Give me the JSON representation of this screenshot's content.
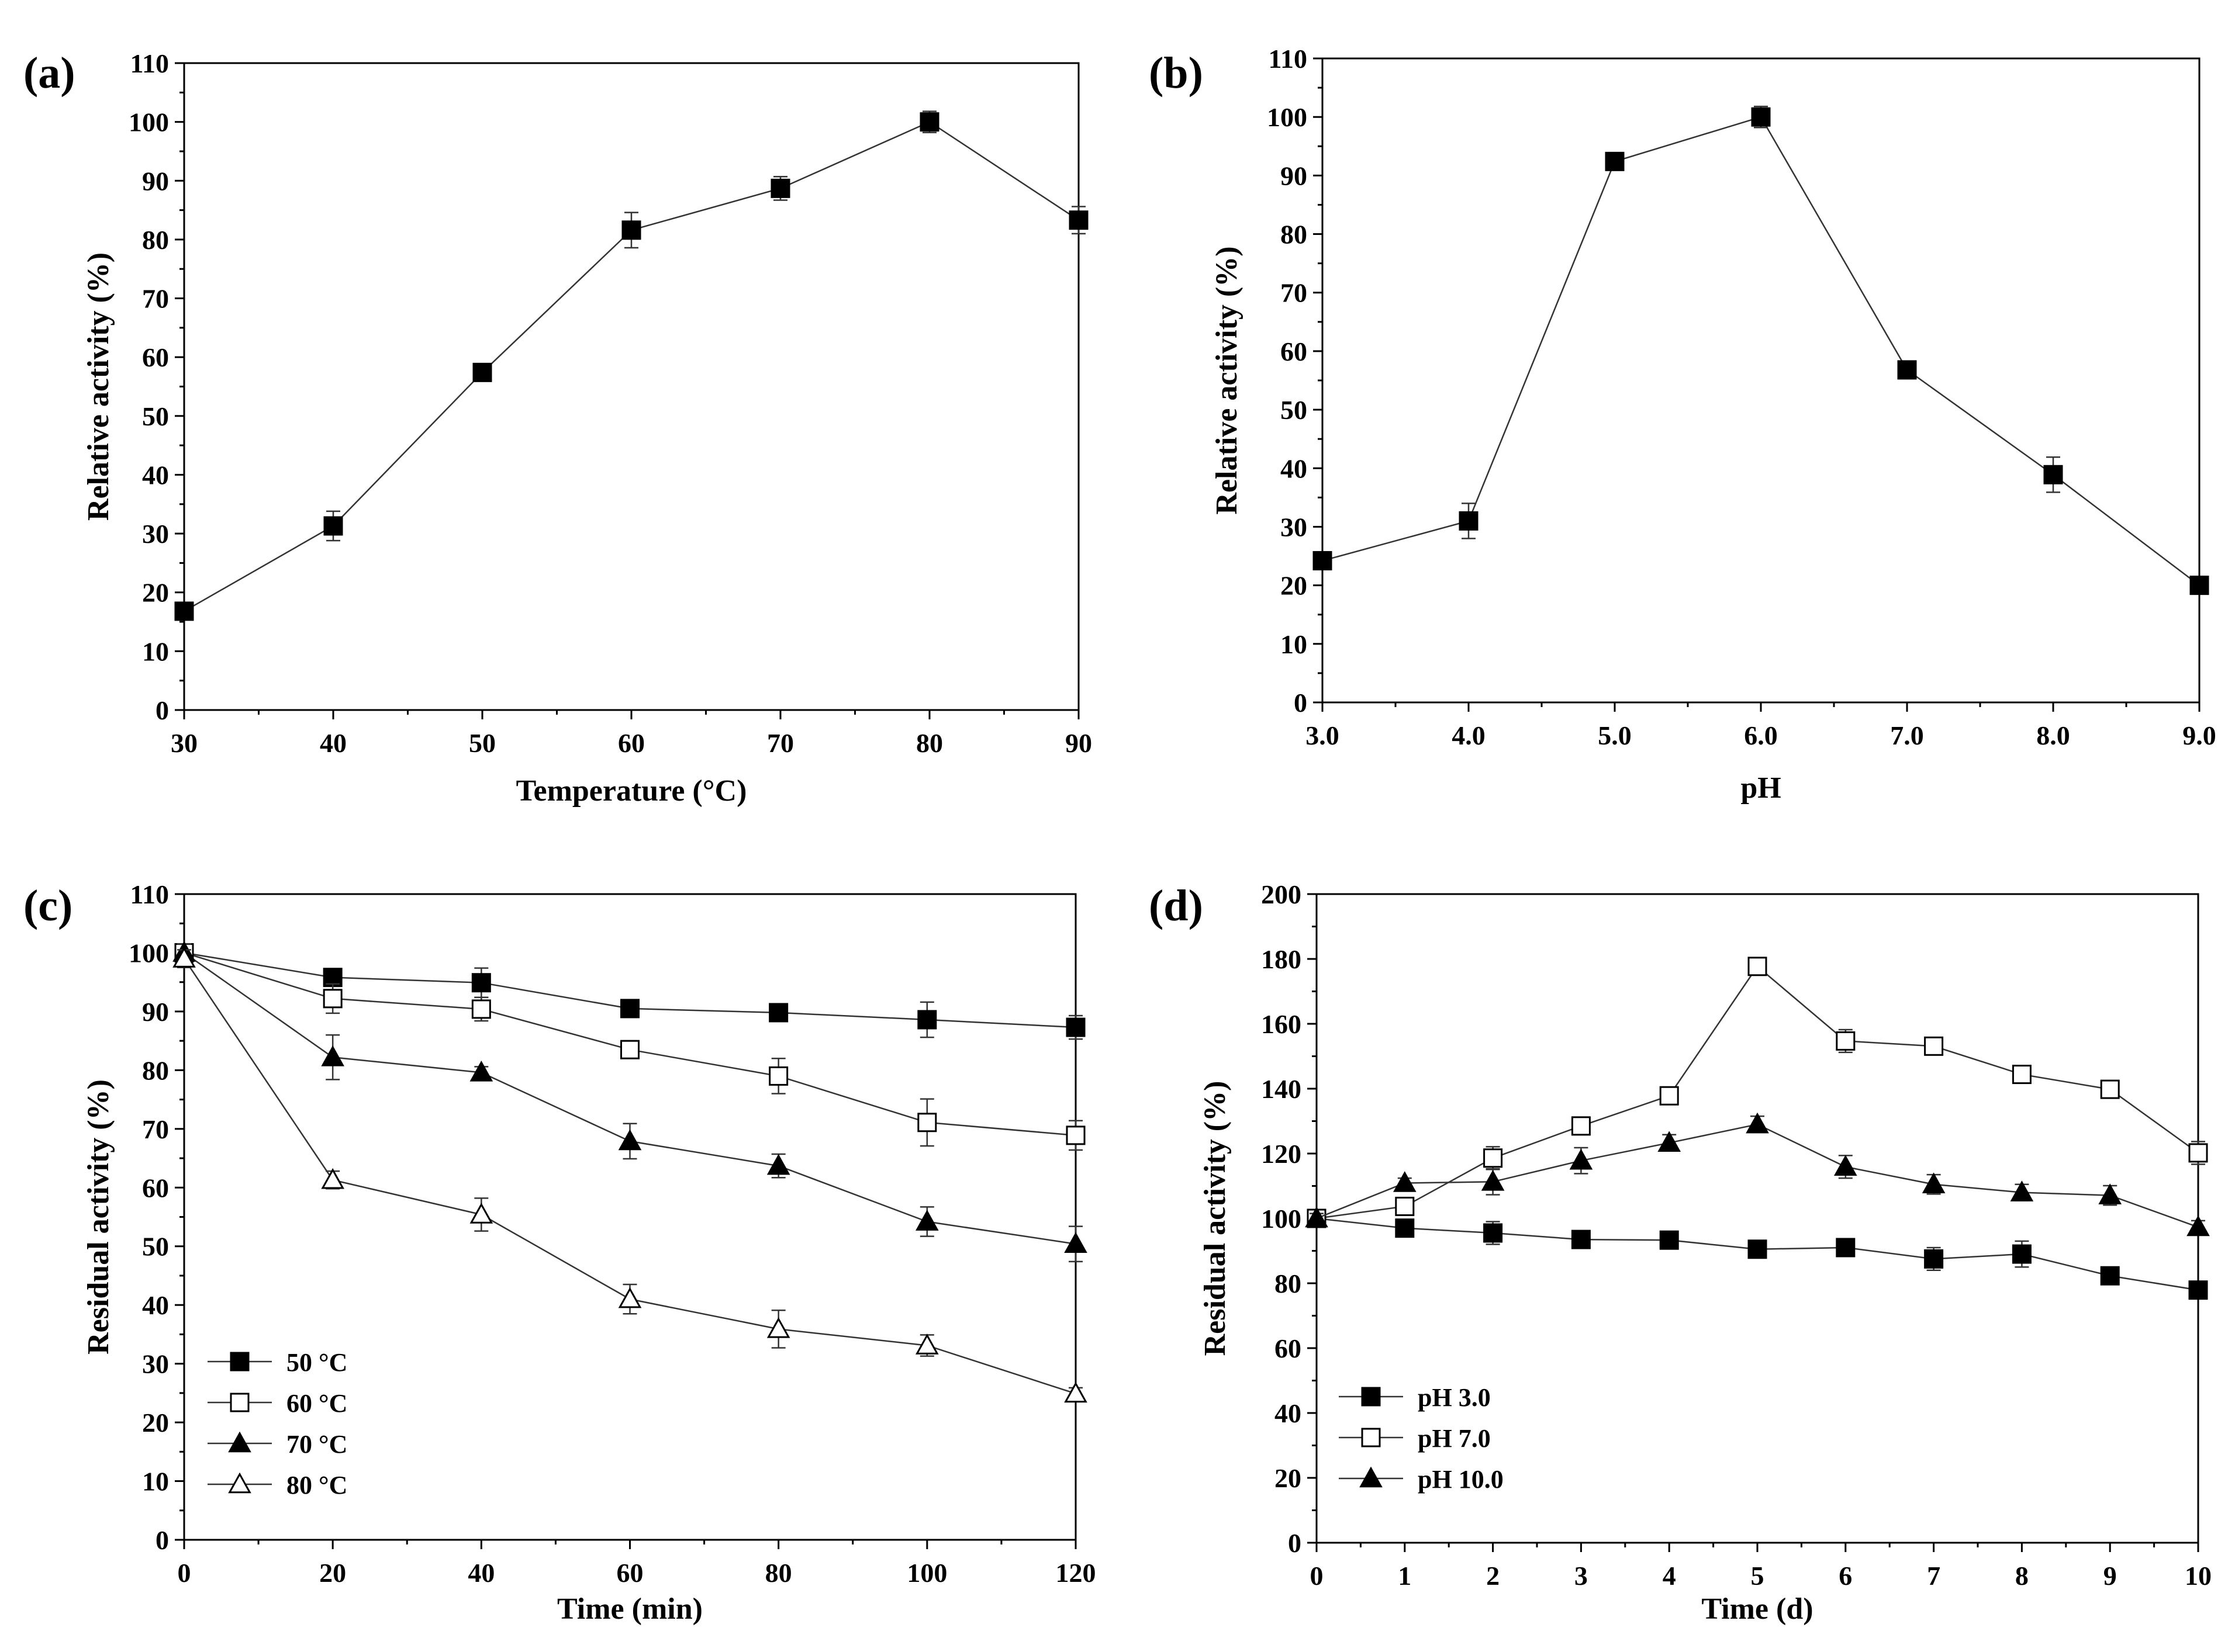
{
  "colors": {
    "ink": "#000000",
    "line": "#333333",
    "hollow_fill": "#ffffff"
  },
  "chart_data": [
    {
      "id": "a",
      "panel_label": "(a)",
      "type": "line",
      "xlabel": "Temperature (°C)",
      "ylabel": "Relative activity (%)",
      "xlim": [
        30,
        90
      ],
      "ylim": [
        0,
        110
      ],
      "xticks": [
        30,
        40,
        50,
        60,
        70,
        80,
        90
      ],
      "xtick_labels": [
        "30",
        "40",
        "50",
        "60",
        "70",
        "80",
        "90"
      ],
      "yticks": [
        0,
        10,
        20,
        30,
        40,
        50,
        60,
        70,
        80,
        90,
        100,
        110
      ],
      "legend": false,
      "series": [
        {
          "name": "activity",
          "marker": "square-filled",
          "x": [
            30,
            40,
            50,
            60,
            70,
            80,
            90
          ],
          "y": [
            16.8,
            31.3,
            57.4,
            81.6,
            88.7,
            100.0,
            83.3
          ],
          "err": [
            0.5,
            2.5,
            1.0,
            3.0,
            2.0,
            1.8,
            2.3
          ]
        }
      ]
    },
    {
      "id": "b",
      "panel_label": "(b)",
      "type": "line",
      "xlabel": "pH",
      "ylabel": "Relative activity (%)",
      "xlim": [
        3,
        9
      ],
      "ylim": [
        0,
        110
      ],
      "xticks": [
        3,
        4,
        5,
        6,
        7,
        8,
        9
      ],
      "xtick_labels": [
        "3.0",
        "4.0",
        "5.0",
        "6.0",
        "7.0",
        "8.0",
        "9.0"
      ],
      "yticks": [
        0,
        10,
        20,
        30,
        40,
        50,
        60,
        70,
        80,
        90,
        100,
        110
      ],
      "legend": false,
      "series": [
        {
          "name": "activity",
          "marker": "square-filled",
          "x": [
            3,
            4,
            5,
            6,
            7,
            8,
            9
          ],
          "y": [
            24.2,
            31.0,
            92.4,
            100.0,
            56.8,
            38.9,
            20.0
          ],
          "err": [
            1.5,
            3.0,
            1.2,
            1.8,
            1.5,
            3.0,
            1.5
          ]
        }
      ]
    },
    {
      "id": "c",
      "panel_label": "(c)",
      "type": "line",
      "xlabel": "Time (min)",
      "ylabel": "Residual activity (%)",
      "xlim": [
        0,
        120
      ],
      "ylim": [
        0,
        110
      ],
      "xticks": [
        0,
        20,
        40,
        60,
        80,
        100,
        120
      ],
      "xtick_labels": [
        "0",
        "20",
        "40",
        "60",
        "80",
        "100",
        "120"
      ],
      "yticks": [
        0,
        10,
        20,
        30,
        40,
        50,
        60,
        70,
        80,
        90,
        100,
        110
      ],
      "legend": "bottom-left",
      "series": [
        {
          "name": "50 °C",
          "marker": "square-filled",
          "x": [
            0,
            20,
            40,
            60,
            80,
            100,
            120
          ],
          "y": [
            100,
            95.8,
            94.9,
            90.5,
            89.8,
            88.6,
            87.3
          ],
          "err": [
            1.5,
            0.8,
            2.5,
            1.5,
            0.5,
            3.0,
            2.0
          ]
        },
        {
          "name": "60 °C",
          "marker": "square-open",
          "x": [
            0,
            20,
            40,
            60,
            80,
            100,
            120
          ],
          "y": [
            100,
            92.2,
            90.4,
            83.5,
            79.0,
            71.1,
            68.9
          ],
          "err": [
            1.5,
            2.5,
            2.0,
            1.5,
            3.0,
            4.0,
            2.5
          ]
        },
        {
          "name": "70 °C",
          "marker": "triangle-filled",
          "x": [
            0,
            20,
            40,
            60,
            80,
            100,
            120
          ],
          "y": [
            100,
            82.2,
            79.6,
            67.9,
            63.7,
            54.2,
            50.4
          ],
          "err": [
            1.5,
            3.8,
            1.0,
            3.0,
            2.0,
            2.5,
            3.0
          ]
        },
        {
          "name": "80 °C",
          "marker": "triangle-open",
          "x": [
            0,
            20,
            40,
            60,
            80,
            100,
            120
          ],
          "y": [
            99,
            61.3,
            55.4,
            41.0,
            35.9,
            33.1,
            24.9
          ],
          "err": [
            1.5,
            1.5,
            2.8,
            2.5,
            3.2,
            1.8,
            1.0
          ]
        }
      ]
    },
    {
      "id": "d",
      "panel_label": "(d)",
      "type": "line",
      "xlabel": "Time (d)",
      "ylabel": "Residual activity (%)",
      "xlim": [
        0,
        10
      ],
      "ylim": [
        0,
        200
      ],
      "xticks": [
        0,
        1,
        2,
        3,
        4,
        5,
        6,
        7,
        8,
        9,
        10
      ],
      "xtick_labels": [
        "0",
        "1",
        "2",
        "3",
        "4",
        "5",
        "6",
        "7",
        "8",
        "9",
        "10"
      ],
      "yticks": [
        0,
        20,
        40,
        60,
        80,
        100,
        120,
        140,
        160,
        180,
        200
      ],
      "legend": "bottom-left",
      "series": [
        {
          "name": "pH 3.0",
          "marker": "square-filled",
          "x": [
            0,
            1,
            2,
            3,
            4,
            5,
            6,
            7,
            8,
            9,
            10
          ],
          "y": [
            100,
            97,
            95.5,
            93.5,
            93.3,
            90.5,
            91.0,
            87.5,
            89.0,
            82.3,
            77.9
          ],
          "err": [
            1.5,
            1.5,
            3.5,
            1.5,
            1.5,
            1.5,
            2.5,
            3.5,
            4.0,
            1.5,
            1.5
          ]
        },
        {
          "name": "pH 7.0",
          "marker": "square-open",
          "x": [
            0,
            1,
            2,
            3,
            4,
            5,
            6,
            7,
            8,
            9,
            10
          ],
          "y": [
            100,
            103.7,
            118.6,
            128.5,
            137.8,
            177.7,
            154.7,
            153.1,
            144.4,
            139.8,
            120.2
          ],
          "err": [
            1.5,
            2.0,
            3.5,
            2.0,
            1.5,
            1.5,
            3.5,
            1.5,
            2.5,
            1.5,
            3.5
          ]
        },
        {
          "name": "pH 10.0",
          "marker": "triangle-filled",
          "x": [
            0,
            1,
            2,
            3,
            4,
            5,
            6,
            7,
            8,
            9,
            10
          ],
          "y": [
            100,
            110.9,
            111.3,
            117.8,
            123.3,
            129.0,
            115.9,
            110.5,
            108.0,
            107.1,
            97.3
          ],
          "err": [
            1.5,
            1.5,
            4.0,
            4.0,
            2.5,
            2.5,
            3.5,
            3.0,
            2.5,
            3.0,
            2.0
          ]
        }
      ]
    }
  ]
}
